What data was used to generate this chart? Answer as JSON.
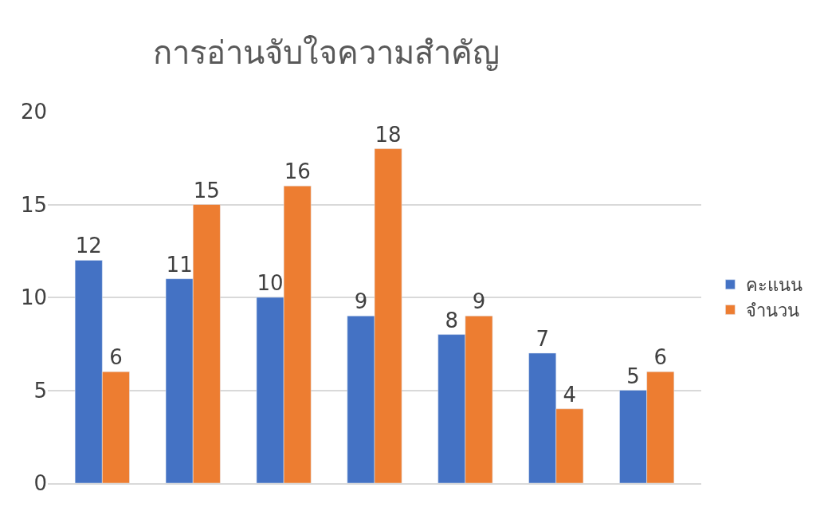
{
  "chart_data": {
    "type": "bar",
    "title": "การอ่านจับใจความสำคัญ",
    "categories": [
      null,
      null,
      null,
      null,
      null,
      null,
      null
    ],
    "series": [
      {
        "name": "คะแนน",
        "color": "#4472c4",
        "values": [
          12,
          11,
          10,
          9,
          8,
          7,
          5
        ]
      },
      {
        "name": "จำนวน",
        "color": "#ed7d31",
        "values": [
          6,
          15,
          16,
          18,
          9,
          4,
          6
        ]
      }
    ],
    "ylim": [
      0,
      20
    ],
    "yticks": [
      0,
      5,
      10,
      15,
      20
    ],
    "grid": "y",
    "legend": "right",
    "data_labels": true,
    "tick_labels": "y"
  }
}
